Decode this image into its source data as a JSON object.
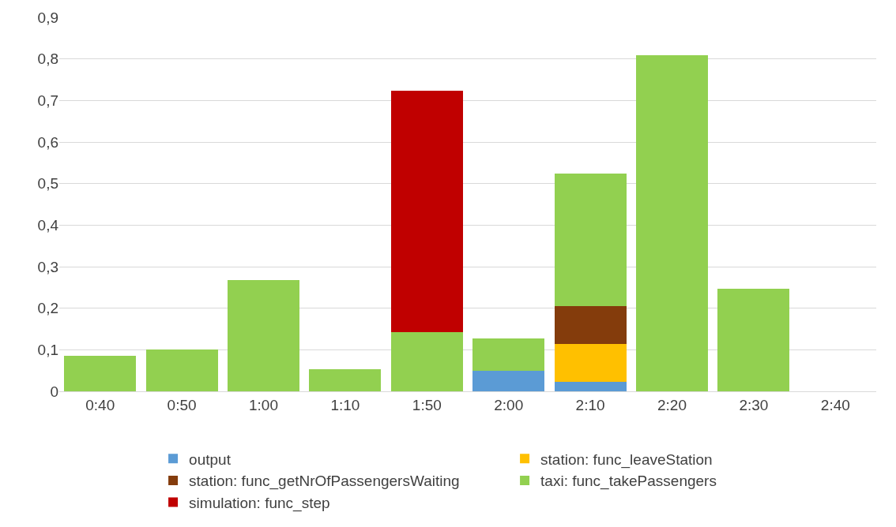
{
  "chart_data": {
    "type": "bar",
    "stacked": true,
    "categories": [
      "0:40",
      "0:50",
      "1:00",
      "1:10",
      "1:50",
      "2:00",
      "2:10",
      "2:20",
      "2:30",
      "2:40"
    ],
    "series": [
      {
        "name": "output",
        "color": "#5b9bd5",
        "values": [
          0,
          0,
          0,
          0,
          0,
          0.049,
          0.023,
          0,
          0,
          0
        ]
      },
      {
        "name": "station: func_leaveStation",
        "color": "#ffc000",
        "values": [
          0,
          0,
          0,
          0,
          0,
          0,
          0.091,
          0,
          0,
          0
        ]
      },
      {
        "name": "station: func_getNrOfPassengersWaiting",
        "color": "#843c0c",
        "values": [
          0,
          0,
          0,
          0,
          0,
          0,
          0.091,
          0,
          0,
          0
        ]
      },
      {
        "name": "taxi: func_takePassengers",
        "color": "#92d050",
        "values": [
          0.085,
          0.1,
          0.267,
          0.053,
          0.142,
          0.078,
          0.319,
          0.808,
          0.247,
          0
        ]
      },
      {
        "name": "simulation: func_step",
        "color": "#c00000",
        "values": [
          0,
          0,
          0,
          0,
          0.581,
          0,
          0,
          0,
          0,
          0
        ]
      }
    ],
    "ylim": [
      0,
      0.9
    ],
    "yticks": [
      0,
      {
        "value": 0.1,
        "label": "0,1"
      },
      {
        "value": 0.2,
        "label": "0,2"
      },
      {
        "value": 0.3,
        "label": "0,3"
      },
      {
        "value": 0.4,
        "label": "0,4"
      },
      {
        "value": 0.5,
        "label": "0,5"
      },
      {
        "value": 0.6,
        "label": "0,6"
      },
      {
        "value": 0.7,
        "label": "0,7"
      },
      {
        "value": 0.8,
        "label": "0,8"
      },
      {
        "value": 0.9,
        "label": "0,9"
      }
    ],
    "grid": "y",
    "legend": "bottom"
  }
}
